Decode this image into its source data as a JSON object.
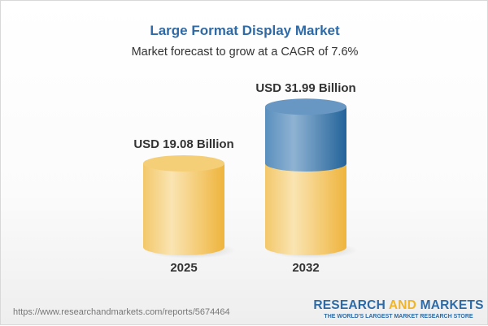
{
  "header": {
    "title": "Large Format Display Market",
    "subtitle": "Market forecast to grow at a CAGR of 7.6%"
  },
  "chart_data": {
    "type": "bar",
    "categories": [
      "2025",
      "2032"
    ],
    "values": [
      19.08,
      31.99
    ],
    "data_labels": [
      "USD 19.08 Billion",
      "USD 31.99 Billion"
    ],
    "unit": "USD Billion",
    "colors": {
      "base": "#f2c25a",
      "growth": "#3f7bb0"
    },
    "style": "3d-cylinder"
  },
  "footer": {
    "url": "https://www.researchandmarkets.com/reports/5674464",
    "logo_part1": "RESEARCH ",
    "logo_part2": "AND",
    "logo_part3": " MARKETS",
    "tagline": "THE WORLD'S LARGEST MARKET RESEARCH STORE"
  }
}
